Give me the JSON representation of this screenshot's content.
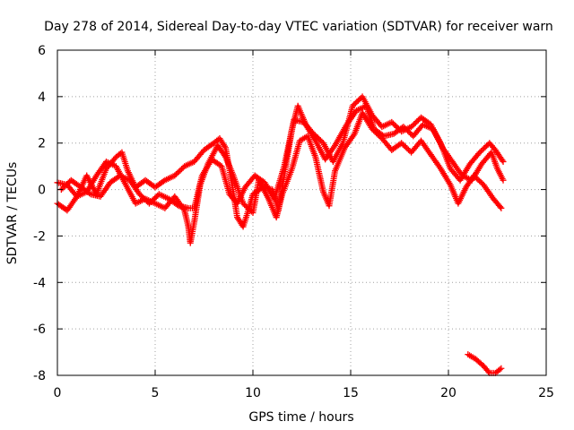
{
  "chart_data": {
    "type": "scatter",
    "title": "Day 278 of 2014, Sidereal Day-to-day VTEC variation (SDTVAR) for receiver warn",
    "xlabel": "GPS time / hours",
    "ylabel": "SDTVAR / TECUs",
    "xlim": [
      0,
      25
    ],
    "ylim": [
      -8,
      6
    ],
    "xticks": [
      0,
      5,
      10,
      15,
      20,
      25
    ],
    "yticks": [
      -8,
      -6,
      -4,
      -2,
      0,
      2,
      4,
      6
    ],
    "grid": true,
    "marker": "plus",
    "color": "#ff0000",
    "series": [
      {
        "name": "track-1",
        "points": [
          [
            0,
            0.3
          ],
          [
            0.5,
            0.2
          ],
          [
            1,
            -0.3
          ],
          [
            1.5,
            0.6
          ],
          [
            2,
            -0.2
          ],
          [
            2.5,
            0.9
          ],
          [
            3,
            1.4
          ],
          [
            3.3,
            1.6
          ],
          [
            3.6,
            0.8
          ],
          [
            4,
            0.1
          ],
          [
            4.5,
            0.4
          ],
          [
            5,
            0.1
          ],
          [
            5.5,
            0.4
          ],
          [
            6,
            0.6
          ],
          [
            6.5,
            1.0
          ],
          [
            7,
            1.2
          ],
          [
            7.5,
            1.7
          ],
          [
            8,
            2.0
          ],
          [
            8.3,
            2.2
          ],
          [
            8.6,
            1.8
          ],
          [
            8.9,
            0.4
          ],
          [
            9.2,
            -1.2
          ],
          [
            9.5,
            -1.6
          ],
          [
            9.8,
            -0.8
          ],
          [
            10,
            -0.2
          ],
          [
            10.5,
            0.1
          ],
          [
            11,
            0.0
          ],
          [
            11.3,
            -0.9
          ],
          [
            11.6,
            0.6
          ],
          [
            12,
            2.6
          ],
          [
            12.3,
            3.6
          ],
          [
            12.7,
            2.8
          ],
          [
            13.2,
            2.1
          ],
          [
            13.7,
            1.3
          ],
          [
            14.2,
            1.9
          ],
          [
            14.8,
            2.8
          ],
          [
            15.3,
            3.4
          ],
          [
            15.8,
            3.6
          ],
          [
            16.2,
            2.6
          ],
          [
            16.7,
            2.3
          ],
          [
            17.2,
            2.4
          ],
          [
            17.7,
            2.7
          ],
          [
            18.2,
            2.3
          ],
          [
            18.7,
            2.8
          ],
          [
            19.2,
            2.6
          ],
          [
            19.7,
            1.8
          ],
          [
            20.2,
            1.2
          ],
          [
            20.7,
            0.6
          ],
          [
            21.2,
            0.4
          ],
          [
            21.7,
            1.1
          ],
          [
            22.2,
            1.6
          ],
          [
            22.5,
            0.9
          ],
          [
            22.8,
            0.4
          ]
        ]
      },
      {
        "name": "track-2",
        "points": [
          [
            0,
            -0.6
          ],
          [
            0.5,
            -0.9
          ],
          [
            1,
            -0.3
          ],
          [
            1.5,
            -0.1
          ],
          [
            2,
            0.6
          ],
          [
            2.5,
            1.2
          ],
          [
            3,
            1.0
          ],
          [
            3.5,
            0.2
          ],
          [
            4,
            -0.6
          ],
          [
            4.5,
            -0.4
          ],
          [
            5,
            -0.6
          ],
          [
            5.5,
            -0.8
          ],
          [
            6,
            -0.3
          ],
          [
            6.5,
            -0.9
          ],
          [
            6.7,
            -1.6
          ],
          [
            6.8,
            -2.3
          ],
          [
            7,
            -1.4
          ],
          [
            7.3,
            0.2
          ],
          [
            7.7,
            1.1
          ],
          [
            8.2,
            1.9
          ],
          [
            8.6,
            1.4
          ],
          [
            9,
            0.6
          ],
          [
            9.5,
            -0.6
          ],
          [
            10,
            -1.0
          ],
          [
            10.3,
            0.4
          ],
          [
            10.8,
            -0.4
          ],
          [
            11.2,
            -1.2
          ],
          [
            11.5,
            -0.2
          ],
          [
            12,
            0.9
          ],
          [
            12.4,
            2.1
          ],
          [
            12.8,
            2.3
          ],
          [
            13.2,
            1.4
          ],
          [
            13.6,
            -0.1
          ],
          [
            13.9,
            -0.7
          ],
          [
            14.2,
            0.8
          ],
          [
            14.7,
            1.8
          ],
          [
            15.2,
            2.4
          ],
          [
            15.6,
            3.3
          ],
          [
            16.1,
            2.6
          ],
          [
            16.6,
            2.2
          ],
          [
            17.1,
            1.7
          ],
          [
            17.6,
            2.0
          ],
          [
            18.1,
            1.6
          ],
          [
            18.6,
            2.1
          ],
          [
            19.1,
            1.5
          ],
          [
            19.6,
            0.9
          ],
          [
            20.1,
            0.2
          ],
          [
            20.5,
            -0.6
          ],
          [
            20.9,
            0.1
          ],
          [
            21.3,
            0.6
          ],
          [
            21.8,
            0.2
          ],
          [
            22.3,
            -0.4
          ],
          [
            22.7,
            -0.8
          ]
        ]
      },
      {
        "name": "track-3",
        "points": [
          [
            0.2,
            0.0
          ],
          [
            0.7,
            0.4
          ],
          [
            1.2,
            0.1
          ],
          [
            1.7,
            -0.2
          ],
          [
            2.2,
            -0.3
          ],
          [
            2.7,
            0.3
          ],
          [
            3.2,
            0.6
          ],
          [
            3.7,
            0.4
          ],
          [
            4.2,
            -0.2
          ],
          [
            4.7,
            -0.6
          ],
          [
            5.2,
            -0.2
          ],
          [
            5.7,
            -0.4
          ],
          [
            6.2,
            -0.7
          ],
          [
            6.7,
            -0.8
          ],
          [
            7,
            -0.8
          ],
          [
            7.4,
            0.6
          ],
          [
            7.9,
            1.3
          ],
          [
            8.4,
            1.0
          ],
          [
            8.8,
            -0.2
          ],
          [
            9.2,
            -0.6
          ],
          [
            9.6,
            0.1
          ],
          [
            10.1,
            0.6
          ],
          [
            10.6,
            0.3
          ],
          [
            11.1,
            -0.4
          ],
          [
            11.6,
            1.0
          ],
          [
            12.1,
            3.0
          ],
          [
            12.6,
            2.9
          ],
          [
            13.1,
            2.4
          ],
          [
            13.6,
            2.0
          ],
          [
            14.1,
            1.2
          ],
          [
            14.6,
            2.0
          ],
          [
            15.1,
            3.6
          ],
          [
            15.6,
            4.0
          ],
          [
            16.1,
            3.2
          ],
          [
            16.6,
            2.7
          ],
          [
            17.1,
            2.9
          ],
          [
            17.6,
            2.5
          ],
          [
            18.1,
            2.7
          ],
          [
            18.6,
            3.1
          ],
          [
            19.1,
            2.8
          ],
          [
            19.6,
            2.0
          ],
          [
            20.1,
            0.9
          ],
          [
            20.6,
            0.4
          ],
          [
            21.1,
            1.1
          ],
          [
            21.6,
            1.6
          ],
          [
            22.1,
            2.0
          ],
          [
            22.4,
            1.7
          ],
          [
            22.8,
            1.2
          ]
        ]
      },
      {
        "name": "track-4",
        "points": [
          [
            21.0,
            -7.1
          ],
          [
            21.4,
            -7.3
          ],
          [
            21.8,
            -7.6
          ],
          [
            22.1,
            -7.9
          ],
          [
            22.4,
            -7.9
          ],
          [
            22.7,
            -7.7
          ]
        ]
      }
    ]
  }
}
